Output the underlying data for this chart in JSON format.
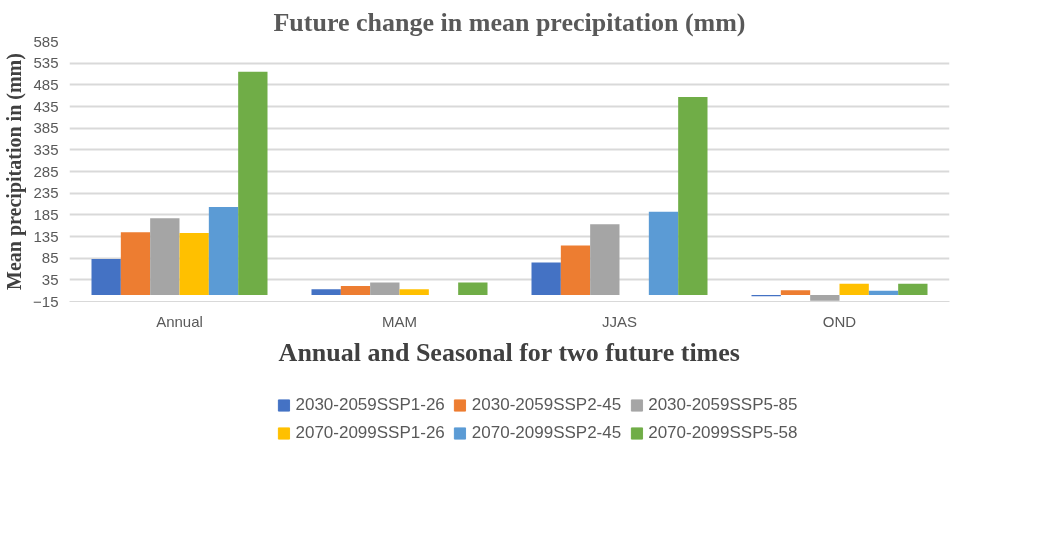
{
  "chart_data": {
    "type": "bar",
    "title": "Future change in mean precipitation (mm)",
    "xlabel": "Annual and Seasonal for two future times",
    "ylabel": "Mean precipitation in (mm)",
    "categories": [
      "Annual",
      "MAM",
      "JJAS",
      "OND"
    ],
    "series": [
      {
        "name": "2030-2059SSP1-26",
        "color": "#4472c4",
        "values": [
          83,
          13,
          75,
          -3
        ]
      },
      {
        "name": "2030-2059SSP2-45",
        "color": "#ed7d31",
        "values": [
          145,
          21,
          114,
          11
        ]
      },
      {
        "name": "2030-2059SSP5-85",
        "color": "#a5a5a5",
        "values": [
          177,
          29,
          163,
          -13
        ]
      },
      {
        "name": "2070-2099SSP1-26",
        "color": "#ffc000",
        "values": [
          143,
          13,
          null,
          26
        ]
      },
      {
        "name": "2070-2099SSP2-45",
        "color": "#5b9bd5",
        "values": [
          203,
          null,
          192,
          10
        ]
      },
      {
        "name": "2070-2099SSP5-58",
        "color": "#70ad47",
        "values": [
          515,
          29,
          457,
          26
        ]
      }
    ],
    "ylim": [
      -15,
      585
    ],
    "yticks": [
      -15,
      35,
      85,
      135,
      185,
      235,
      285,
      335,
      385,
      435,
      485,
      535,
      585
    ],
    "grid": "y",
    "legend": "bottom"
  }
}
